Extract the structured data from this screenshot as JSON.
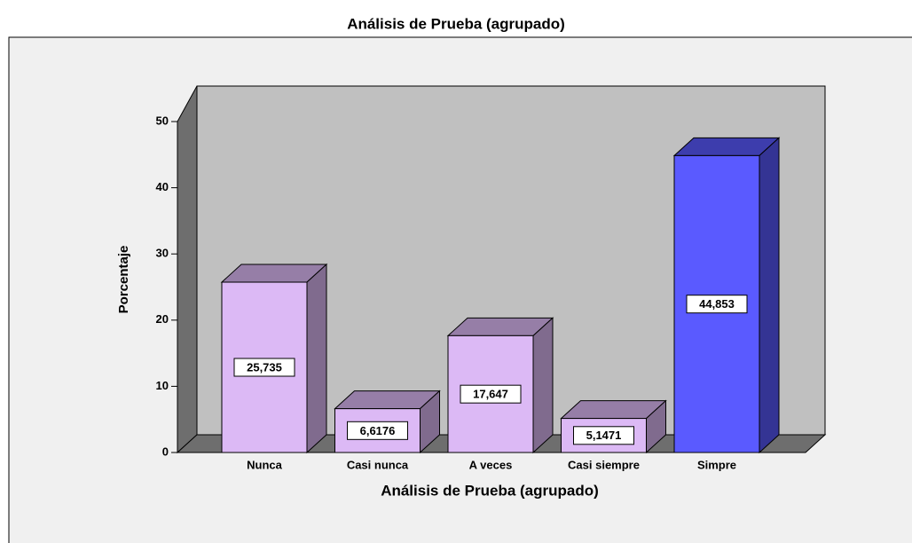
{
  "chart_data": {
    "type": "bar3d",
    "title": "Análisis de Prueba (agrupado)",
    "x_label": "Análisis de Prueba (agrupado)",
    "y_label": "Porcentaje",
    "categories": [
      "Nunca",
      "Casi nunca",
      "A veces",
      "Casi siempre",
      "Simpre"
    ],
    "values": [
      25.735,
      6.6176,
      17.647,
      5.1471,
      44.853
    ],
    "value_labels": [
      "25,735",
      "6,6176",
      "17,647",
      "5,1471",
      "44,853"
    ],
    "colors": [
      "#dcb9f5",
      "#dcb9f5",
      "#dcb9f5",
      "#dcb9f5",
      "#5a5aff"
    ],
    "ylim": [
      0,
      50
    ],
    "yticks": [
      0,
      10,
      20,
      30,
      40,
      50
    ],
    "grid": false
  }
}
